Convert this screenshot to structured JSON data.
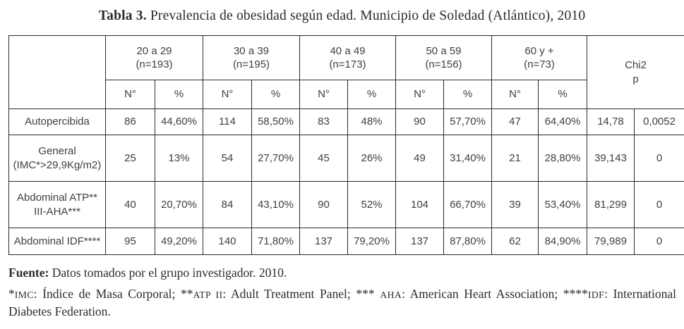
{
  "title": {
    "label": "Tabla 3.",
    "rest": " Prevalencia de obesidad según edad. Municipio de Soledad (Atlántico), 2010"
  },
  "table": {
    "age_groups": [
      {
        "range": "20 a 29",
        "n": "(n=193)"
      },
      {
        "range": "30 a 39",
        "n": "(n=195)"
      },
      {
        "range": "40 a 49",
        "n": "(n=173)"
      },
      {
        "range": "50 a 59",
        "n": "(n=156)"
      },
      {
        "range": "60 y +",
        "n": "(n=73)"
      }
    ],
    "sub_headers": {
      "count": "N°",
      "percent": "%"
    },
    "chi2_header": {
      "line1": "Chi2",
      "line2": "p"
    },
    "rows": [
      {
        "label": [
          "Autopercibida"
        ],
        "values": [
          "86",
          "44,60%",
          "114",
          "58,50%",
          "83",
          "48%",
          "90",
          "57,70%",
          "47",
          "64,40%"
        ],
        "chi2": "14,78",
        "p": "0,0052"
      },
      {
        "label": [
          "General",
          "(IMC*>29,9Kg/m2)"
        ],
        "values": [
          "25",
          "13%",
          "54",
          "27,70%",
          "45",
          "26%",
          "49",
          "31,40%",
          "21",
          "28,80%"
        ],
        "chi2": "39,143",
        "p": "0"
      },
      {
        "label": [
          "Abdominal ATP**",
          "III-AHA***"
        ],
        "values": [
          "40",
          "20,70%",
          "84",
          "43,10%",
          "90",
          "52%",
          "104",
          "66,70%",
          "39",
          "53,40%"
        ],
        "chi2": "81,299",
        "p": "0"
      },
      {
        "label": [
          "Abdominal IDF****"
        ],
        "values": [
          "95",
          "49,20%",
          "140",
          "71,80%",
          "137",
          "79,20%",
          "137",
          "87,80%",
          "62",
          "84,90%"
        ],
        "chi2": "79,989",
        "p": "0"
      }
    ]
  },
  "source": {
    "label": "Fuente:",
    "text": " Datos tomados por el grupo investigador. 2010."
  },
  "footnote": {
    "parts": [
      {
        "text": "*"
      },
      {
        "text": "IMC",
        "sc": true
      },
      {
        "text": ": Índice de Masa Corporal; **"
      },
      {
        "text": "ATP II",
        "sc": true
      },
      {
        "text": ": Adult Treatment Panel; *** "
      },
      {
        "text": "AHA",
        "sc": true
      },
      {
        "text": ": American Heart Association; ****"
      },
      {
        "text": "IDF",
        "sc": true
      },
      {
        "text": ": International Diabetes Federation."
      }
    ]
  }
}
